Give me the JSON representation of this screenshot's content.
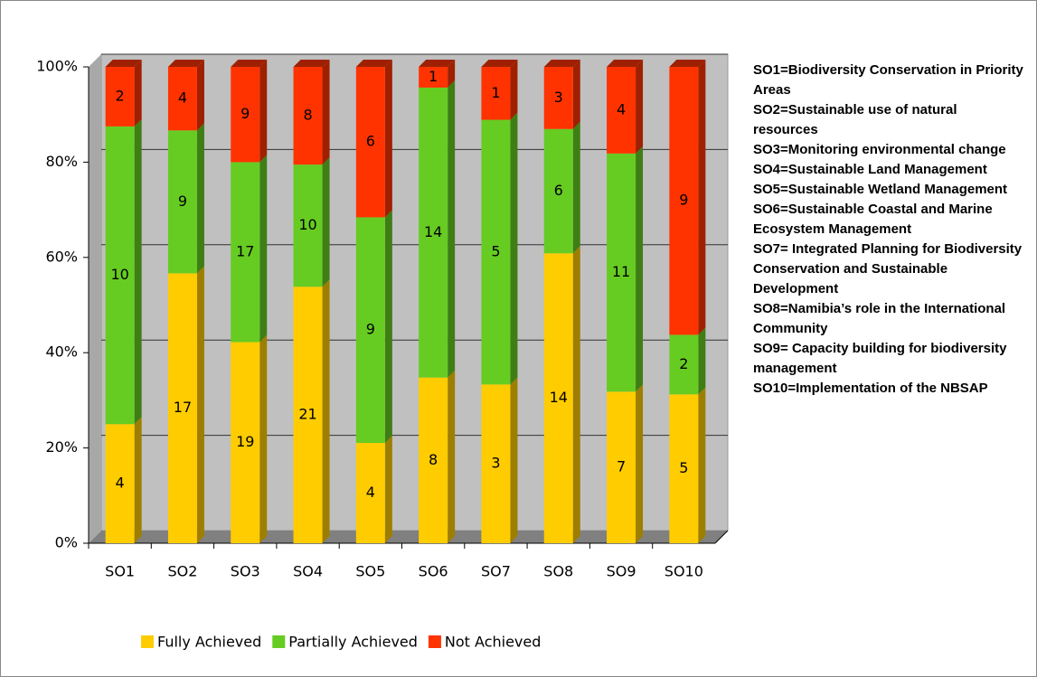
{
  "chart_data": {
    "type": "bar",
    "stacking": "percent",
    "categories": [
      "SO1",
      "SO2",
      "SO3",
      "SO4",
      "SO5",
      "SO6",
      "SO7",
      "SO8",
      "SO9",
      "SO10"
    ],
    "series": [
      {
        "name": "Fully Achieved",
        "color": "#ffcc00",
        "values": [
          4,
          17,
          19,
          21,
          4,
          8,
          3,
          14,
          7,
          5
        ]
      },
      {
        "name": "Partially Achieved",
        "color": "#66cc22",
        "values": [
          10,
          9,
          17,
          10,
          9,
          14,
          5,
          6,
          11,
          2
        ]
      },
      {
        "name": "Not Achieved",
        "color": "#ff3300",
        "values": [
          2,
          4,
          9,
          8,
          6,
          1,
          1,
          3,
          4,
          9
        ]
      }
    ],
    "ylim": [
      0,
      100
    ],
    "yticks": [
      {
        "value": 0,
        "label": "0%"
      },
      {
        "value": 20,
        "label": "20%"
      },
      {
        "value": 40,
        "label": "40%"
      },
      {
        "value": 60,
        "label": "60%"
      },
      {
        "value": 80,
        "label": "80%"
      },
      {
        "value": 100,
        "label": "100%"
      }
    ],
    "grid": true,
    "legend": "bottom",
    "notes": [
      "SO1=Biodiversity Conservation in Priority Areas",
      "SO2=Sustainable use of natural resources",
      "SO3=Monitoring environmental change",
      "SO4=Sustainable Land Management",
      "SO5=Sustainable Wetland Management",
      "SO6=Sustainable Coastal and Marine Ecosystem Management",
      "SO7= Integrated Planning for Biodiversity Conservation and Sustainable Development",
      "SO8=Namibia’s role in the International Community",
      "SO9= Capacity building for biodiversity management",
      "SO10=Implementation of the NBSAP"
    ]
  }
}
